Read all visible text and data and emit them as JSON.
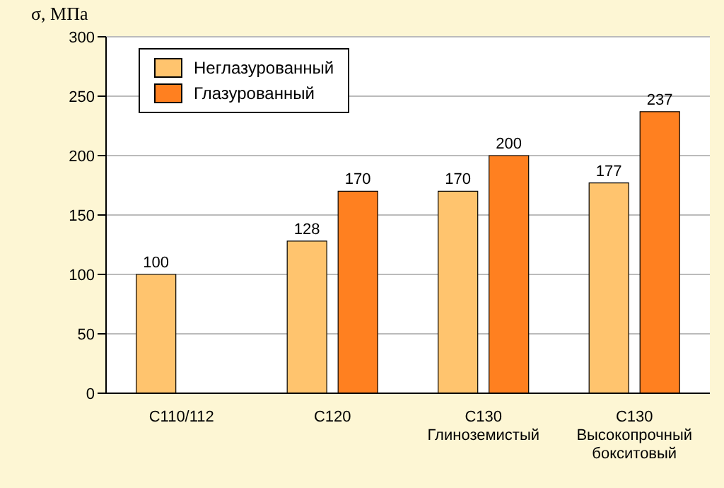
{
  "chart_data": {
    "type": "bar",
    "ylabel": "σ, МПа",
    "categories": [
      "С110/112",
      "С120",
      "С130\nГлиноземистый",
      "С130\nВысокопрочный\nбокситовый"
    ],
    "series": [
      {
        "name": "Неглазурованный",
        "color": "#ffc46e",
        "values": [
          100,
          128,
          170,
          177
        ]
      },
      {
        "name": "Глазурованный",
        "color": "#ff8020",
        "values": [
          null,
          170,
          200,
          237
        ]
      }
    ],
    "ylim": [
      0,
      300
    ],
    "yticks": [
      0,
      50,
      100,
      150,
      200,
      250,
      300
    ],
    "grid": "y",
    "legend": "top left",
    "data_labels": true
  }
}
